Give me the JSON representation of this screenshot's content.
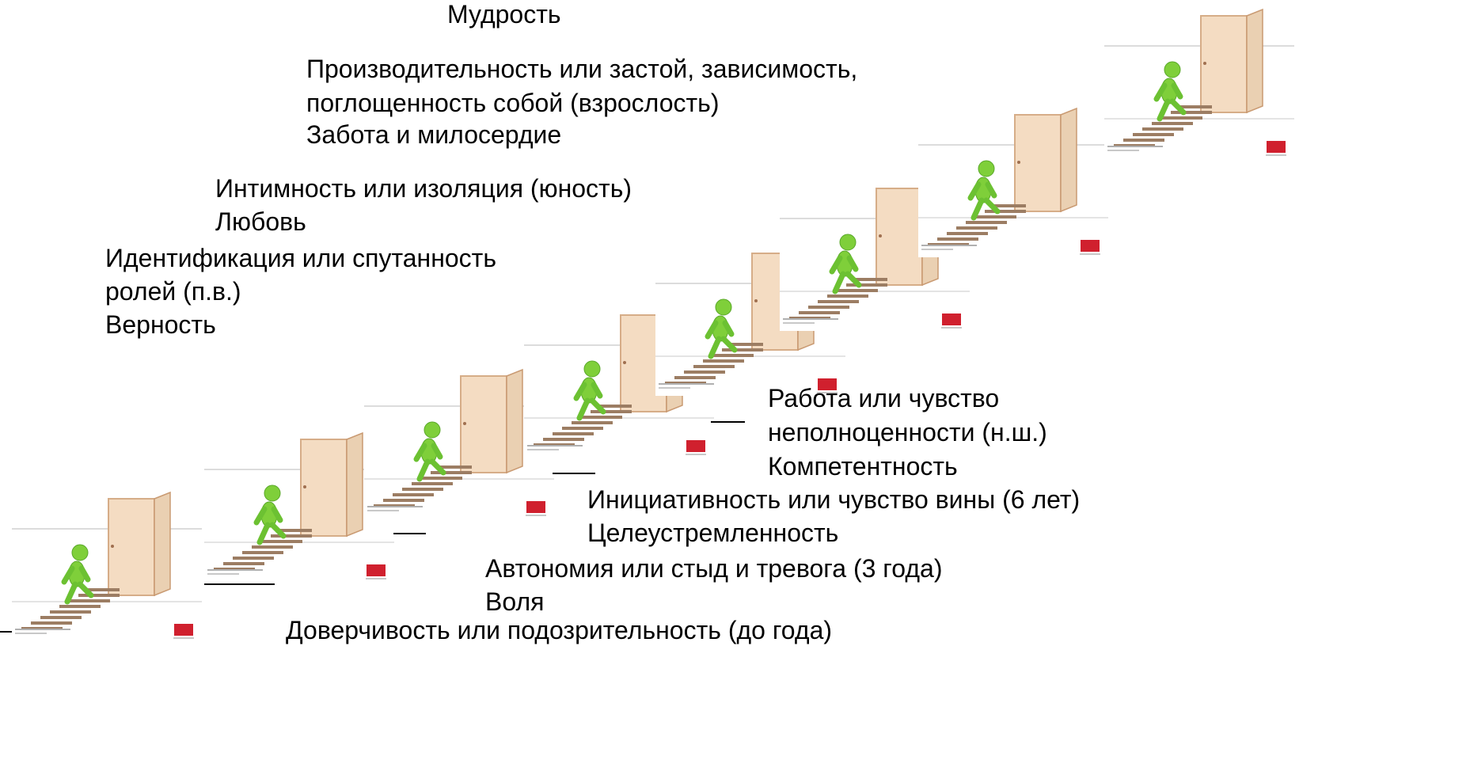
{
  "blocks": [
    {
      "lines": [
        "Мудрость"
      ]
    },
    {
      "lines": [
        "Производительность или застой, зависимость,",
        "поглощенность собой (взрослость)",
        "Забота и милосердие"
      ]
    },
    {
      "lines": [
        "Интимность или изоляция (юность)",
        "Любовь"
      ]
    },
    {
      "lines": [
        "Идентификация или спутанность",
        "ролей (п.в.)",
        "Верность"
      ]
    },
    {
      "lines": [
        "Работа или чувство",
        "неполноценности (н.ш.)",
        "Компетентность"
      ]
    },
    {
      "lines": [
        "Инициативность или чувство вины (6 лет)",
        "Целеустремленность"
      ]
    },
    {
      "lines": [
        "Автономия или стыд и тревога (3 года)",
        "Воля"
      ]
    },
    {
      "lines": [
        "Доверчивость или подозрительность (до года)"
      ]
    }
  ]
}
